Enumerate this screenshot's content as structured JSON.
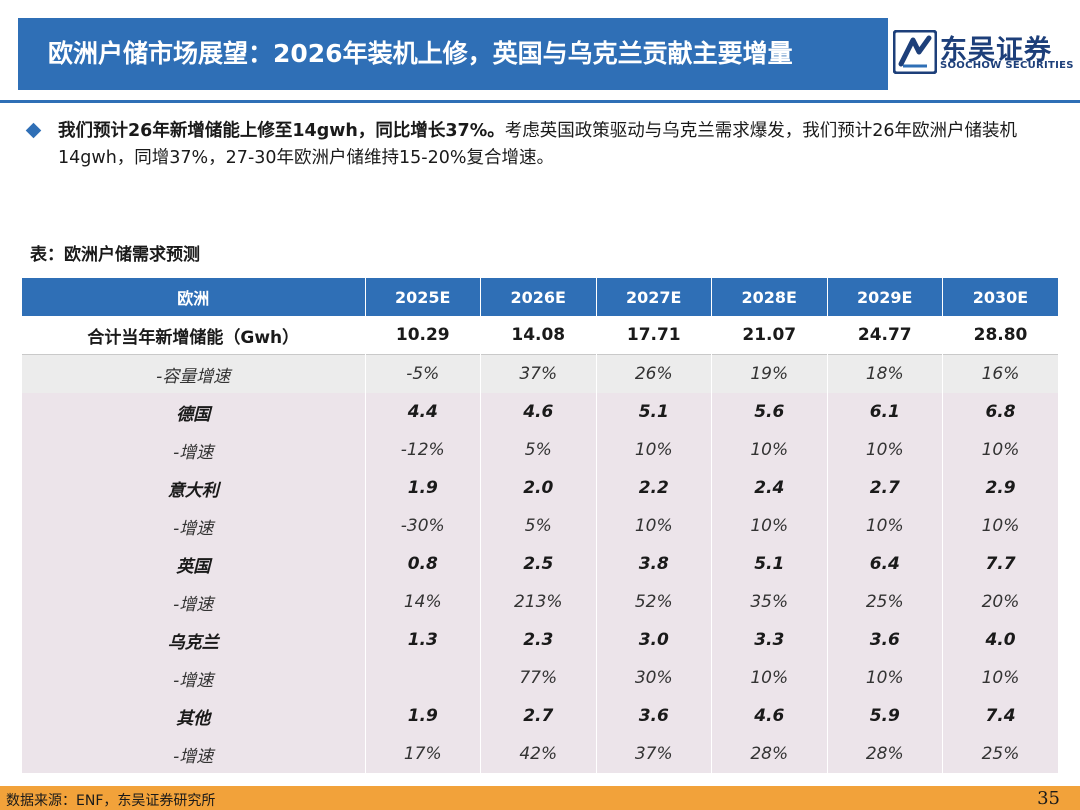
{
  "header": {
    "title": "欧洲户储市场展望：2026年装机上修，英国与乌克兰贡献主要增量",
    "logo_cn": "东吴证券",
    "logo_en": "SOOCHOW SECURITIES"
  },
  "summary": {
    "bold": "我们预计26年新增储能上修至14gwh，同比增长37%。",
    "rest": "考虑英国政策驱动与乌克兰需求爆发，我们预计26年欧洲户储装机14gwh，同增37%，27-30年欧洲户储维持15-20%复合增速。"
  },
  "table": {
    "caption": "表：欧洲户储需求预测",
    "headers": [
      "欧洲",
      "2025E",
      "2026E",
      "2027E",
      "2028E",
      "2029E",
      "2030E"
    ],
    "rows": [
      {
        "type": "total",
        "label": "合计当年新增储能（Gwh）",
        "values": [
          "10.29",
          "14.08",
          "17.71",
          "21.07",
          "24.77",
          "28.80"
        ]
      },
      {
        "type": "growth-total",
        "label": "-容量增速",
        "values": [
          "-5%",
          "37%",
          "26%",
          "19%",
          "18%",
          "16%"
        ]
      },
      {
        "type": "country",
        "label": "德国",
        "values": [
          "4.4",
          "4.6",
          "5.1",
          "5.6",
          "6.1",
          "6.8"
        ]
      },
      {
        "type": "growth",
        "label": "-增速",
        "values": [
          "-12%",
          "5%",
          "10%",
          "10%",
          "10%",
          "10%"
        ]
      },
      {
        "type": "country",
        "label": "意大利",
        "values": [
          "1.9",
          "2.0",
          "2.2",
          "2.4",
          "2.7",
          "2.9"
        ]
      },
      {
        "type": "growth",
        "label": "-增速",
        "values": [
          "-30%",
          "5%",
          "10%",
          "10%",
          "10%",
          "10%"
        ]
      },
      {
        "type": "country",
        "label": "英国",
        "values": [
          "0.8",
          "2.5",
          "3.8",
          "5.1",
          "6.4",
          "7.7"
        ]
      },
      {
        "type": "growth",
        "label": "-增速",
        "values": [
          "14%",
          "213%",
          "52%",
          "35%",
          "25%",
          "20%"
        ]
      },
      {
        "type": "country",
        "label": "乌克兰",
        "values": [
          "1.3",
          "2.3",
          "3.0",
          "3.3",
          "3.6",
          "4.0"
        ]
      },
      {
        "type": "growth",
        "label": "-增速",
        "values": [
          "",
          "77%",
          "30%",
          "10%",
          "10%",
          "10%"
        ]
      },
      {
        "type": "country",
        "label": "其他",
        "values": [
          "1.9",
          "2.7",
          "3.6",
          "4.6",
          "5.9",
          "7.4"
        ]
      },
      {
        "type": "growth",
        "label": "-增速",
        "values": [
          "17%",
          "42%",
          "37%",
          "28%",
          "28%",
          "25%"
        ]
      }
    ]
  },
  "footer": {
    "source": "数据来源：ENF，东吴证券研究所",
    "page": "35"
  },
  "colors": {
    "primary_blue": "#2f6fb6",
    "accent_orange": "#f2a23a",
    "row_pink": "#ece4ea"
  }
}
